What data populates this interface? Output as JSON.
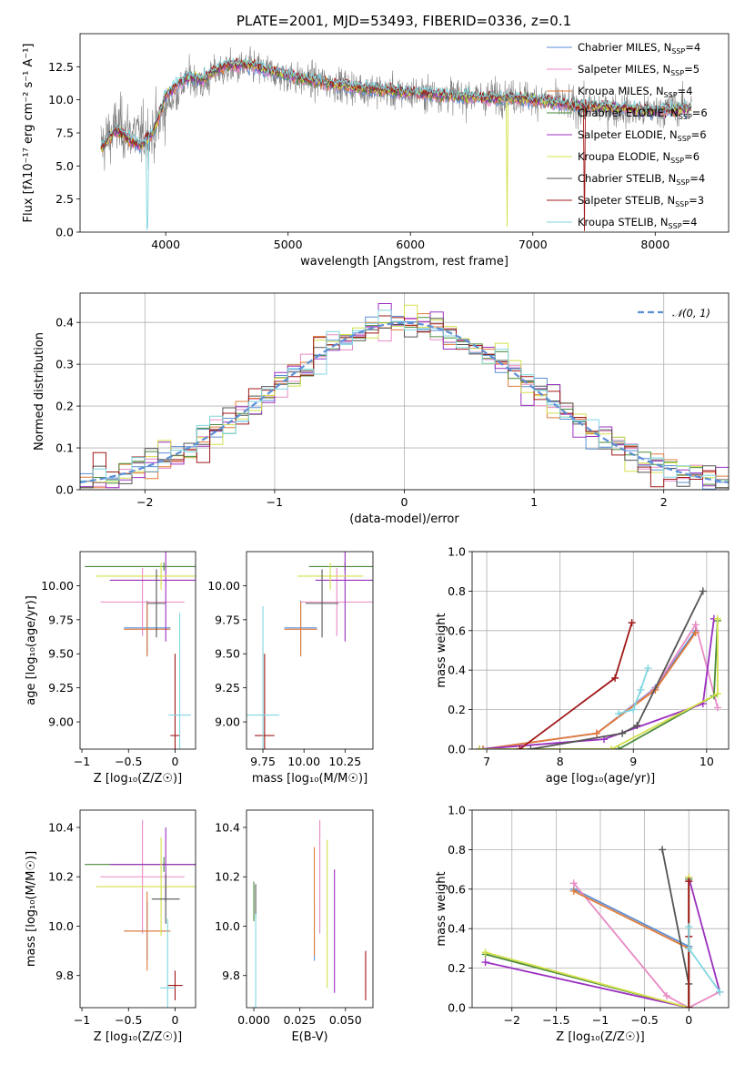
{
  "title": "PLATE=2001, MJD=53493, FIBERID=0336, z=0.1",
  "colors": [
    "#5b8fd6",
    "#e88ac4",
    "#e07b39",
    "#4a8a3a",
    "#9b30c0",
    "#d4e04a",
    "#555555",
    "#a01818",
    "#7fd6e0"
  ],
  "legend": [
    {
      "name": "Chabrier MILES",
      "n": "4"
    },
    {
      "name": "Salpeter MILES",
      "n": "5"
    },
    {
      "name": "Kroupa MILES",
      "n": "4"
    },
    {
      "name": "Chabrier ELODIE",
      "n": "6"
    },
    {
      "name": "Salpeter ELODIE",
      "n": "6"
    },
    {
      "name": "Kroupa ELODIE",
      "n": "6"
    },
    {
      "name": "Chabrier STELIB",
      "n": "4"
    },
    {
      "name": "Salpeter STELIB",
      "n": "3"
    },
    {
      "name": "Kroupa STELIB",
      "n": "4"
    }
  ],
  "legend_nsub": "SSP",
  "chart_data": [
    {
      "id": "spectrum",
      "type": "line",
      "xlabel": "wavelength [Angstrom, rest frame]",
      "ylabel": "Flux [fλ10⁻¹⁷ erg cm⁻² s⁻¹ A⁻¹]",
      "xlim": [
        3300,
        8600
      ],
      "ylim": [
        0,
        15
      ],
      "xticks": [
        4000,
        5000,
        6000,
        7000,
        8000
      ],
      "yticks": [
        0,
        2.5,
        5.0,
        7.5,
        10.0,
        12.5
      ],
      "legend_position": "top-right",
      "data_series": {
        "name": "data",
        "x": [
          3470,
          3600,
          3700,
          3800,
          3900,
          4000,
          4100,
          4200,
          4300,
          4400,
          4500,
          4700,
          4900,
          5100,
          5300,
          5500,
          5700,
          5900,
          6100,
          6300,
          6500,
          6700,
          6900,
          7100,
          7300,
          7500,
          7700,
          7900,
          8100,
          8300
        ],
        "y": [
          6.5,
          8.0,
          7.6,
          7.2,
          7.5,
          9.5,
          10.5,
          11.8,
          11.0,
          12.0,
          12.3,
          12.5,
          12.0,
          11.5,
          11.3,
          11.0,
          10.8,
          10.5,
          10.5,
          10.4,
          10.2,
          10.3,
          10.2,
          10.0,
          9.5,
          9.4,
          9.3,
          9.0,
          9.3,
          9.6
        ]
      },
      "model_envelope": {
        "x": [
          3470,
          3600,
          3700,
          3800,
          3900,
          4000,
          4100,
          4200,
          4300,
          4400,
          4500,
          4700,
          4900,
          5100,
          5300,
          5500,
          5700,
          5900,
          6100,
          6300,
          6500,
          6700,
          6900,
          7100,
          7300,
          7500,
          7700,
          7900,
          8100,
          8300
        ],
        "y": [
          6.3,
          7.8,
          7.0,
          6.5,
          7.6,
          10.3,
          11.2,
          11.8,
          11.5,
          12.2,
          12.6,
          12.6,
          12.1,
          11.6,
          11.3,
          11.0,
          10.8,
          10.6,
          10.5,
          10.3,
          10.2,
          10.1,
          10.1,
          9.9,
          9.6,
          9.5,
          9.4,
          9.2,
          9.2,
          9.4
        ]
      }
    },
    {
      "id": "residuals",
      "type": "histogram",
      "xlabel": "(data-model)/error",
      "ylabel": "Normed distribution",
      "xlim": [
        -2.5,
        2.5
      ],
      "ylim": [
        0,
        0.47
      ],
      "xticks": [
        -2,
        -1,
        0,
        1,
        2
      ],
      "yticks": [
        0.0,
        0.1,
        0.2,
        0.3,
        0.4
      ],
      "bin_width": 0.1,
      "grid": true,
      "reference_curve": {
        "label": "𝒩(0, 1)",
        "mean": 0,
        "sigma": 1
      },
      "legend_position": "top-right"
    },
    {
      "id": "age_vs_Z",
      "type": "errorbar",
      "xlabel": "Z [log₁₀(Z/Z☉)]",
      "ylabel": "age  [log₁₀(age/yr)]",
      "xlim": [
        -1.02,
        0.22
      ],
      "ylim": [
        8.8,
        10.25
      ],
      "xticks": [
        -1.0,
        -0.5,
        0.0
      ],
      "yticks": [
        9.0,
        9.25,
        9.5,
        9.75,
        10.0
      ],
      "points": [
        {
          "x": -0.3,
          "xerr": 0.25,
          "y": 9.69,
          "yerr": 0.2
        },
        {
          "x": -0.35,
          "xerr": 0.45,
          "y": 9.88,
          "yerr": 0.25
        },
        {
          "x": -0.3,
          "xerr": 0.25,
          "y": 9.68,
          "yerr": 0.2
        },
        {
          "x": -0.12,
          "xerr": 0.85,
          "y": 10.14,
          "yerr": 0.03
        },
        {
          "x": -0.1,
          "xerr": 0.6,
          "y": 10.04,
          "yerr": 0.45
        },
        {
          "x": -0.15,
          "xerr": 0.7,
          "y": 10.07,
          "yerr": 0.1
        },
        {
          "x": -0.2,
          "xerr": 0.1,
          "y": 9.87,
          "yerr": 0.25
        },
        {
          "x": 0.0,
          "xerr": 0.05,
          "y": 8.9,
          "yerr": 0.6
        },
        {
          "x": 0.05,
          "xerr": 0.12,
          "y": 9.05,
          "yerr": 0.75
        }
      ]
    },
    {
      "id": "age_vs_mass",
      "type": "errorbar",
      "xlabel": "mass [log₁₀(M/M☉)]",
      "ylabel": "",
      "xlim": [
        9.65,
        10.42
      ],
      "ylim": [
        8.8,
        10.25
      ],
      "xticks": [
        9.75,
        10.0,
        10.25
      ],
      "xtick_labels": [
        "9.75",
        "10.00",
        "10.25"
      ],
      "yticks": [
        9.0,
        9.25,
        9.5,
        9.75,
        10.0
      ],
      "points": [
        {
          "x": 9.98,
          "xerr": 0.1,
          "y": 9.69,
          "yerr": 0.2
        },
        {
          "x": 10.2,
          "xerr": 0.22,
          "y": 9.88,
          "yerr": 0.25
        },
        {
          "x": 9.98,
          "xerr": 0.1,
          "y": 9.68,
          "yerr": 0.2
        },
        {
          "x": 10.25,
          "xerr": 0.22,
          "y": 10.14,
          "yerr": 0.03
        },
        {
          "x": 10.25,
          "xerr": 0.18,
          "y": 10.04,
          "yerr": 0.45
        },
        {
          "x": 10.16,
          "xerr": 0.2,
          "y": 10.07,
          "yerr": 0.1
        },
        {
          "x": 10.11,
          "xerr": 0.1,
          "y": 9.87,
          "yerr": 0.25
        },
        {
          "x": 9.76,
          "xerr": 0.06,
          "y": 8.9,
          "yerr": 0.6
        },
        {
          "x": 9.75,
          "xerr": 0.1,
          "y": 9.05,
          "yerr": 0.8
        }
      ]
    },
    {
      "id": "weight_vs_age",
      "type": "line",
      "xlabel": "age  [log₁₀(age/yr)]",
      "ylabel": "mass weight",
      "xlim": [
        6.8,
        10.3
      ],
      "ylim": [
        0,
        1.0
      ],
      "xticks": [
        7,
        8,
        9,
        10
      ],
      "yticks": [
        0.0,
        0.2,
        0.4,
        0.6,
        0.8,
        1.0
      ],
      "grid": true,
      "series": [
        {
          "x": [
            6.95,
            8.5,
            9.3,
            9.85
          ],
          "y": [
            0.0,
            0.08,
            0.31,
            0.6
          ]
        },
        {
          "x": [
            6.95,
            8.5,
            9.28,
            9.85,
            10.15
          ],
          "y": [
            0.0,
            0.08,
            0.3,
            0.63,
            0.21
          ]
        },
        {
          "x": [
            6.95,
            8.5,
            9.3,
            9.85
          ],
          "y": [
            0.0,
            0.08,
            0.3,
            0.59
          ]
        },
        {
          "x": [
            6.9,
            8.8,
            10.1,
            10.15
          ],
          "y": [
            0.0,
            0.0,
            0.27,
            0.65
          ]
        },
        {
          "x": [
            6.9,
            8.6,
            9.95,
            10.1
          ],
          "y": [
            0.0,
            0.05,
            0.23,
            0.66
          ]
        },
        {
          "x": [
            6.9,
            8.7,
            10.15,
            10.15
          ],
          "y": [
            0.0,
            0.0,
            0.28,
            0.66
          ]
        },
        {
          "x": [
            7.6,
            8.85,
            9.05,
            9.95
          ],
          "y": [
            0.0,
            0.08,
            0.12,
            0.8
          ]
        },
        {
          "x": [
            7.45,
            8.75,
            8.98
          ],
          "y": [
            0.0,
            0.36,
            0.64
          ]
        },
        {
          "x": [
            8.8,
            9.0,
            9.1,
            9.2
          ],
          "y": [
            0.18,
            0.2,
            0.3,
            0.41
          ]
        }
      ]
    },
    {
      "id": "mass_vs_Z",
      "type": "errorbar",
      "xlabel": "Z [log₁₀(Z/Z☉)]",
      "ylabel": "mass [log₁₀(M/M☉)]",
      "xlim": [
        -1.02,
        0.22
      ],
      "ylim": [
        9.67,
        10.47
      ],
      "xticks": [
        -1.0,
        -0.5,
        0.0
      ],
      "yticks": [
        9.8,
        10.0,
        10.2,
        10.4
      ],
      "points": [
        {
          "x": -0.3,
          "xerr": 0.25,
          "y": 9.98,
          "yerr": 0.12
        },
        {
          "x": -0.35,
          "xerr": 0.45,
          "y": 10.2,
          "yerr": 0.23
        },
        {
          "x": -0.3,
          "xerr": 0.25,
          "y": 9.98,
          "yerr": 0.16
        },
        {
          "x": -0.12,
          "xerr": 0.85,
          "y": 10.25,
          "yerr": 0.03
        },
        {
          "x": -0.1,
          "xerr": 0.6,
          "y": 10.25,
          "yerr": 0.15
        },
        {
          "x": -0.15,
          "xerr": 0.7,
          "y": 10.16,
          "yerr": 0.2
        },
        {
          "x": -0.1,
          "xerr": 0.15,
          "y": 10.11,
          "yerr": 0.1
        },
        {
          "x": 0.0,
          "xerr": 0.08,
          "y": 9.76,
          "yerr": 0.06
        },
        {
          "x": -0.08,
          "xerr": 0.08,
          "y": 9.75,
          "yerr": 0.28
        }
      ]
    },
    {
      "id": "mass_vs_ebv",
      "type": "errorbar",
      "xlabel": "E(B-V)",
      "ylabel": "",
      "xlim": [
        -0.004,
        0.065
      ],
      "ylim": [
        9.67,
        10.47
      ],
      "xticks": [
        0.0,
        0.025,
        0.05
      ],
      "xtick_labels": [
        "0.000",
        "0.025",
        "0.050"
      ],
      "yticks": [
        9.8,
        10.0,
        10.2,
        10.4
      ],
      "points": [
        {
          "x": 0.033,
          "y": 9.98,
          "yerr": 0.12
        },
        {
          "x": 0.036,
          "y": 10.2,
          "yerr": 0.23
        },
        {
          "x": 0.033,
          "y": 10.1,
          "yerr": 0.22
        },
        {
          "x": 0.0,
          "y": 10.1,
          "yerr": 0.08
        },
        {
          "x": 0.044,
          "y": 9.98,
          "yerr": 0.25
        },
        {
          "x": 0.04,
          "y": 10.05,
          "yerr": 0.3
        },
        {
          "x": 0.001,
          "y": 10.1,
          "yerr": 0.07
        },
        {
          "x": 0.061,
          "y": 9.8,
          "yerr": 0.1
        },
        {
          "x": 0.001,
          "y": 9.85,
          "yerr": 0.2
        }
      ]
    },
    {
      "id": "weight_vs_Z",
      "type": "line",
      "xlabel": "Z [log₁₀(Z/Z☉)]",
      "ylabel": "mass weight",
      "xlim": [
        -2.45,
        0.45
      ],
      "ylim": [
        0,
        1.0
      ],
      "xticks": [
        -2.0,
        -1.5,
        -1.0,
        -0.5,
        0.0
      ],
      "yticks": [
        0.0,
        0.2,
        0.4,
        0.6,
        0.8,
        1.0
      ],
      "grid": true,
      "series": [
        {
          "x": [
            -1.3,
            0.0,
            0.0
          ],
          "y": [
            0.6,
            0.31,
            0.0
          ]
        },
        {
          "x": [
            -1.3,
            -0.25,
            0.0,
            0.35
          ],
          "y": [
            0.63,
            0.06,
            0.0,
            0.08
          ]
        },
        {
          "x": [
            -1.3,
            0.0,
            0.0
          ],
          "y": [
            0.59,
            0.3,
            0.0
          ]
        },
        {
          "x": [
            -2.3,
            0.0,
            0.0
          ],
          "y": [
            0.27,
            0.0,
            0.65
          ]
        },
        {
          "x": [
            -2.3,
            0.0,
            0.0,
            0.35
          ],
          "y": [
            0.23,
            0.0,
            0.66,
            0.08
          ]
        },
        {
          "x": [
            -2.3,
            0.0,
            0.0
          ],
          "y": [
            0.28,
            0.0,
            0.66
          ]
        },
        {
          "x": [
            -0.3,
            0.0,
            0.0
          ],
          "y": [
            0.8,
            0.12,
            0.0
          ]
        },
        {
          "x": [
            0.0,
            0.0,
            0.0
          ],
          "y": [
            0.64,
            0.36,
            0.0
          ]
        },
        {
          "x": [
            0.0,
            0.0,
            0.35
          ],
          "y": [
            0.41,
            0.3,
            0.08
          ]
        }
      ]
    }
  ]
}
